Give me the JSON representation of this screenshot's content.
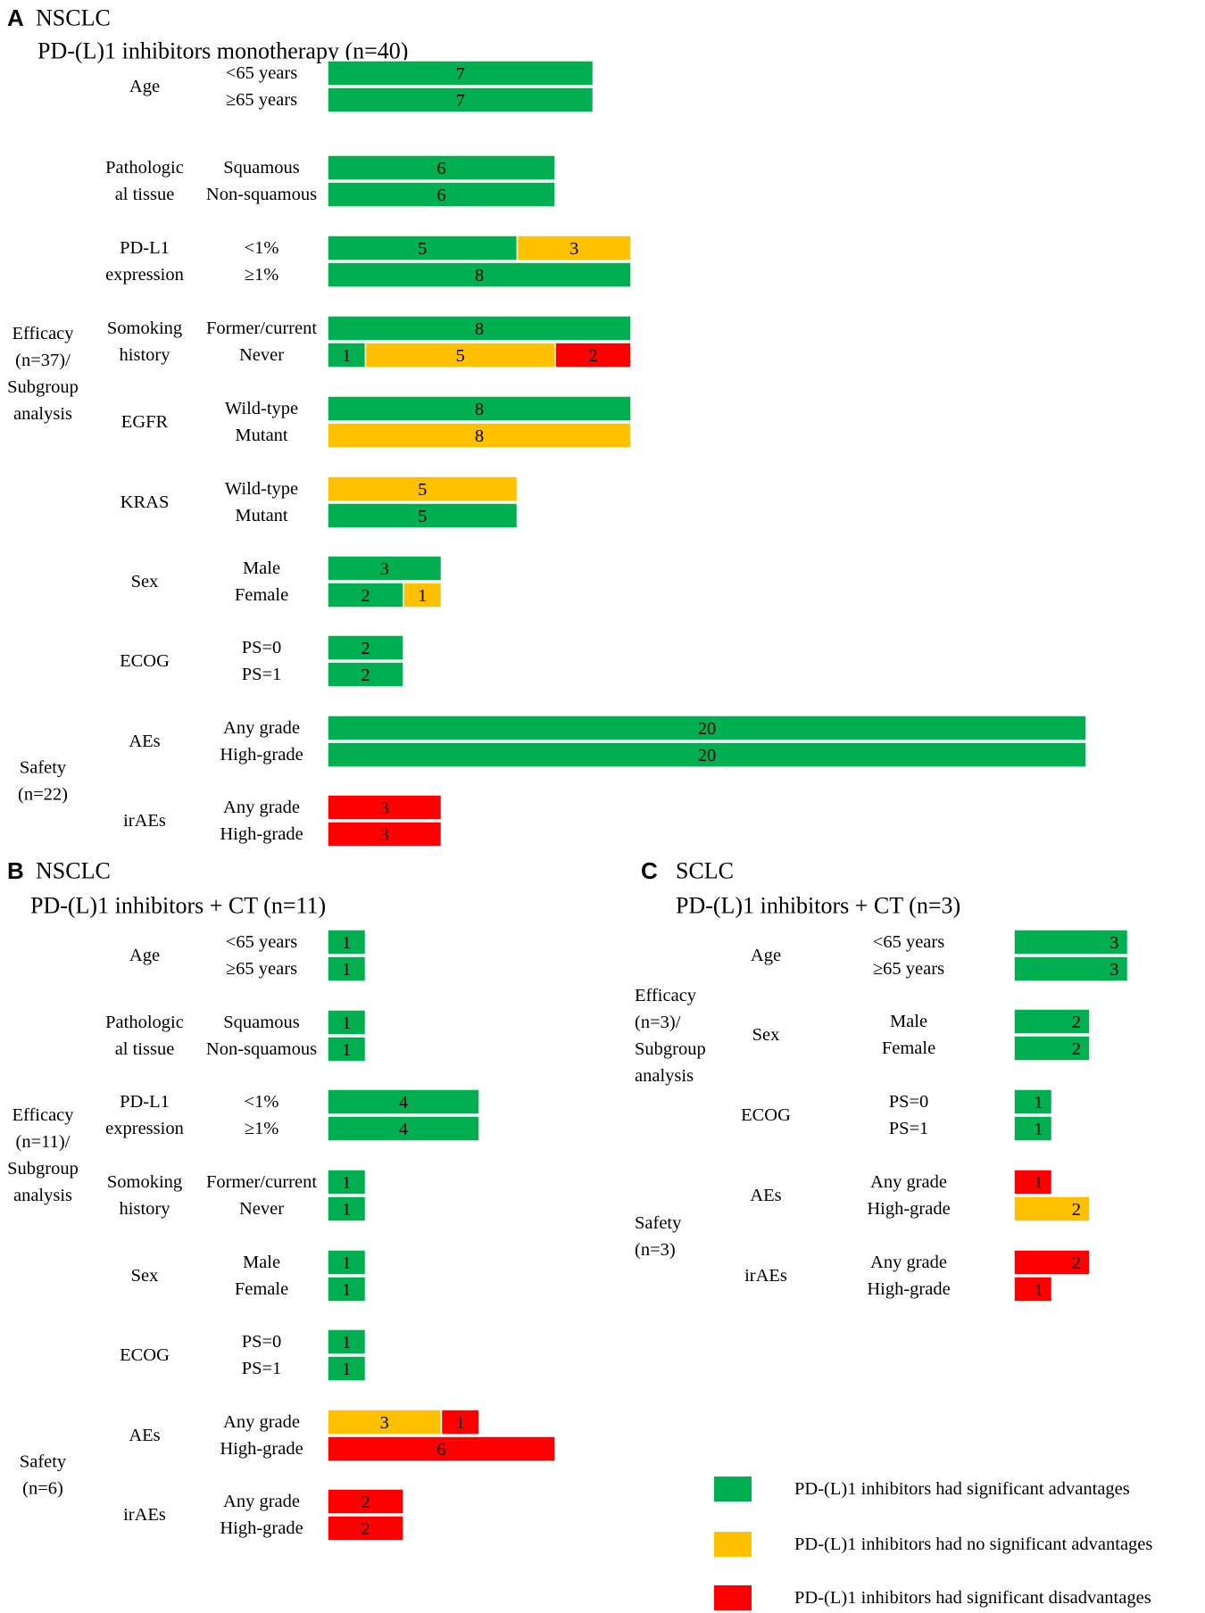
{
  "colors": {
    "sig_adv": "#00b050",
    "no_sig": "#ffc000",
    "sig_disadv": "#ff0000"
  },
  "legend": [
    {
      "key": "sig_adv",
      "label": "PD-(L)1 inhibitors had significant advantages"
    },
    {
      "key": "no_sig",
      "label": "PD-(L)1 inhibitors had no significant advantages"
    },
    {
      "key": "sig_disadv",
      "label": "PD-(L)1 inhibitors had significant disadvantages"
    }
  ],
  "chart_data": [
    {
      "type": "bar",
      "stacked": true,
      "orientation": "horizontal",
      "panel": "A",
      "heading": "NSCLC",
      "title": "PD-(L)1 inhibitors monotherapy  (n=40)",
      "groups": [
        {
          "label": "Efficacy (n=37)/ Subgroup analysis",
          "lines": [
            "Efficacy",
            "(n=37)/",
            "Subgroup",
            "analysis"
          ],
          "items": [
            {
              "category": "Age",
              "lines": [
                "Age"
              ],
              "rows": [
                {
                  "label": "<65 years",
                  "segments": [
                    {
                      "key": "sig_adv",
                      "value": 7
                    }
                  ]
                },
                {
                  "label": "≥65 years",
                  "segments": [
                    {
                      "key": "sig_adv",
                      "value": 7
                    }
                  ]
                }
              ]
            },
            {
              "category": "Pathological tissue",
              "lines": [
                "Pathologic",
                "al tissue"
              ],
              "rows": [
                {
                  "label": "Squamous",
                  "segments": [
                    {
                      "key": "sig_adv",
                      "value": 6
                    }
                  ]
                },
                {
                  "label": "Non-squamous",
                  "segments": [
                    {
                      "key": "sig_adv",
                      "value": 6
                    }
                  ]
                }
              ]
            },
            {
              "category": "PD-L1 expression",
              "lines": [
                "PD-L1",
                "expression"
              ],
              "rows": [
                {
                  "label": "<1%",
                  "segments": [
                    {
                      "key": "sig_adv",
                      "value": 5
                    },
                    {
                      "key": "no_sig",
                      "value": 3
                    }
                  ]
                },
                {
                  "label": "≥1%",
                  "segments": [
                    {
                      "key": "sig_adv",
                      "value": 8
                    }
                  ]
                }
              ]
            },
            {
              "category": "Somoking history",
              "lines": [
                "Somoking",
                "history"
              ],
              "rows": [
                {
                  "label": "Former/current",
                  "segments": [
                    {
                      "key": "sig_adv",
                      "value": 8
                    }
                  ]
                },
                {
                  "label": "Never",
                  "segments": [
                    {
                      "key": "sig_adv",
                      "value": 1
                    },
                    {
                      "key": "no_sig",
                      "value": 5
                    },
                    {
                      "key": "sig_disadv",
                      "value": 2
                    }
                  ]
                }
              ]
            },
            {
              "category": "EGFR",
              "lines": [
                "EGFR"
              ],
              "rows": [
                {
                  "label": "Wild-type",
                  "segments": [
                    {
                      "key": "sig_adv",
                      "value": 8
                    }
                  ]
                },
                {
                  "label": "Mutant",
                  "segments": [
                    {
                      "key": "no_sig",
                      "value": 8
                    }
                  ]
                }
              ]
            },
            {
              "category": "KRAS",
              "lines": [
                "KRAS"
              ],
              "rows": [
                {
                  "label": "Wild-type",
                  "segments": [
                    {
                      "key": "no_sig",
                      "value": 5
                    }
                  ]
                },
                {
                  "label": "Mutant",
                  "segments": [
                    {
                      "key": "sig_adv",
                      "value": 5
                    }
                  ]
                }
              ]
            },
            {
              "category": "Sex",
              "lines": [
                "Sex"
              ],
              "rows": [
                {
                  "label": "Male",
                  "segments": [
                    {
                      "key": "sig_adv",
                      "value": 3
                    }
                  ]
                },
                {
                  "label": "Female",
                  "segments": [
                    {
                      "key": "sig_adv",
                      "value": 2
                    },
                    {
                      "key": "no_sig",
                      "value": 1
                    }
                  ]
                }
              ]
            },
            {
              "category": "ECOG",
              "lines": [
                "ECOG"
              ],
              "rows": [
                {
                  "label": "PS=0",
                  "segments": [
                    {
                      "key": "sig_adv",
                      "value": 2
                    }
                  ]
                },
                {
                  "label": "PS=1",
                  "segments": [
                    {
                      "key": "sig_adv",
                      "value": 2
                    }
                  ]
                }
              ]
            }
          ]
        },
        {
          "label": "Safety (n=22)",
          "lines": [
            "Safety",
            "(n=22)"
          ],
          "items": [
            {
              "category": "AEs",
              "lines": [
                "AEs"
              ],
              "rows": [
                {
                  "label": "Any grade",
                  "segments": [
                    {
                      "key": "sig_adv",
                      "value": 20
                    }
                  ]
                },
                {
                  "label": "High-grade",
                  "segments": [
                    {
                      "key": "sig_adv",
                      "value": 20
                    }
                  ]
                }
              ]
            },
            {
              "category": "irAEs",
              "lines": [
                "irAEs"
              ],
              "rows": [
                {
                  "label": "Any grade",
                  "segments": [
                    {
                      "key": "sig_disadv",
                      "value": 3
                    }
                  ]
                },
                {
                  "label": "High-grade",
                  "segments": [
                    {
                      "key": "sig_disadv",
                      "value": 3
                    }
                  ]
                }
              ]
            }
          ]
        }
      ]
    },
    {
      "type": "bar",
      "stacked": true,
      "orientation": "horizontal",
      "panel": "B",
      "heading": "NSCLC",
      "title": "PD-(L)1 inhibitors + CT  (n=11)",
      "groups": [
        {
          "label": "Efficacy (n=11)/ Subgroup analysis",
          "lines": [
            "Efficacy",
            "(n=11)/",
            "Subgroup",
            "analysis"
          ],
          "items": [
            {
              "category": "Age",
              "lines": [
                "Age"
              ],
              "rows": [
                {
                  "label": "<65 years",
                  "segments": [
                    {
                      "key": "sig_adv",
                      "value": 1
                    }
                  ]
                },
                {
                  "label": "≥65 years",
                  "segments": [
                    {
                      "key": "sig_adv",
                      "value": 1
                    }
                  ]
                }
              ]
            },
            {
              "category": "Pathological tissue",
              "lines": [
                "Pathologic",
                "al tissue"
              ],
              "rows": [
                {
                  "label": "Squamous",
                  "segments": [
                    {
                      "key": "sig_adv",
                      "value": 1
                    }
                  ]
                },
                {
                  "label": "Non-squamous",
                  "segments": [
                    {
                      "key": "sig_adv",
                      "value": 1
                    }
                  ]
                }
              ]
            },
            {
              "category": "PD-L1 expression",
              "lines": [
                "PD-L1",
                "expression"
              ],
              "rows": [
                {
                  "label": "<1%",
                  "segments": [
                    {
                      "key": "sig_adv",
                      "value": 4
                    }
                  ]
                },
                {
                  "label": "≥1%",
                  "segments": [
                    {
                      "key": "sig_adv",
                      "value": 4
                    }
                  ]
                }
              ]
            },
            {
              "category": "Somoking history",
              "lines": [
                "Somoking",
                "history"
              ],
              "rows": [
                {
                  "label": "Former/current",
                  "segments": [
                    {
                      "key": "sig_adv",
                      "value": 1
                    }
                  ]
                },
                {
                  "label": "Never",
                  "segments": [
                    {
                      "key": "sig_adv",
                      "value": 1
                    }
                  ]
                }
              ]
            },
            {
              "category": "Sex",
              "lines": [
                "Sex"
              ],
              "rows": [
                {
                  "label": "Male",
                  "segments": [
                    {
                      "key": "sig_adv",
                      "value": 1
                    }
                  ]
                },
                {
                  "label": "Female",
                  "segments": [
                    {
                      "key": "sig_adv",
                      "value": 1
                    }
                  ]
                }
              ]
            },
            {
              "category": "ECOG",
              "lines": [
                "ECOG"
              ],
              "rows": [
                {
                  "label": "PS=0",
                  "segments": [
                    {
                      "key": "sig_adv",
                      "value": 1
                    }
                  ]
                },
                {
                  "label": "PS=1",
                  "segments": [
                    {
                      "key": "sig_adv",
                      "value": 1
                    }
                  ]
                }
              ]
            }
          ]
        },
        {
          "label": "Safety (n=6)",
          "lines": [
            "Safety",
            "(n=6)"
          ],
          "items": [
            {
              "category": "AEs",
              "lines": [
                "AEs"
              ],
              "rows": [
                {
                  "label": "Any grade",
                  "segments": [
                    {
                      "key": "no_sig",
                      "value": 3
                    },
                    {
                      "key": "sig_disadv",
                      "value": 1
                    }
                  ]
                },
                {
                  "label": "High-grade",
                  "segments": [
                    {
                      "key": "sig_disadv",
                      "value": 6
                    }
                  ]
                }
              ]
            },
            {
              "category": "irAEs",
              "lines": [
                "irAEs"
              ],
              "rows": [
                {
                  "label": "Any grade",
                  "segments": [
                    {
                      "key": "sig_disadv",
                      "value": 2
                    }
                  ]
                },
                {
                  "label": "High-grade",
                  "segments": [
                    {
                      "key": "sig_disadv",
                      "value": 2
                    }
                  ]
                }
              ]
            }
          ]
        }
      ]
    },
    {
      "type": "bar",
      "stacked": true,
      "orientation": "horizontal",
      "panel": "C",
      "heading": "SCLC",
      "title": "PD-(L)1 inhibitors + CT (n=3)",
      "groups": [
        {
          "label": "Efficacy (n=3)/ Subgroup analysis",
          "lines": [
            "Efficacy",
            "(n=3)/",
            "Subgroup",
            "analysis"
          ],
          "items": [
            {
              "category": "Age",
              "lines": [
                "Age"
              ],
              "rows": [
                {
                  "label": "<65 years",
                  "segments": [
                    {
                      "key": "sig_adv",
                      "value": 3
                    }
                  ]
                },
                {
                  "label": "≥65 years",
                  "segments": [
                    {
                      "key": "sig_adv",
                      "value": 3
                    }
                  ]
                }
              ]
            },
            {
              "category": "Sex",
              "lines": [
                "Sex"
              ],
              "rows": [
                {
                  "label": "Male",
                  "segments": [
                    {
                      "key": "sig_adv",
                      "value": 2
                    }
                  ]
                },
                {
                  "label": "Female",
                  "segments": [
                    {
                      "key": "sig_adv",
                      "value": 2
                    }
                  ]
                }
              ]
            },
            {
              "category": "ECOG",
              "lines": [
                "ECOG"
              ],
              "rows": [
                {
                  "label": "PS=0",
                  "segments": [
                    {
                      "key": "sig_adv",
                      "value": 1
                    }
                  ]
                },
                {
                  "label": "PS=1",
                  "segments": [
                    {
                      "key": "sig_adv",
                      "value": 1
                    }
                  ]
                }
              ]
            }
          ]
        },
        {
          "label": "Safety (n=3)",
          "lines": [
            "Safety",
            "(n=3)"
          ],
          "items": [
            {
              "category": "AEs",
              "lines": [
                "AEs"
              ],
              "rows": [
                {
                  "label": "Any grade",
                  "segments": [
                    {
                      "key": "sig_disadv",
                      "value": 1
                    }
                  ]
                },
                {
                  "label": "High-grade",
                  "segments": [
                    {
                      "key": "no_sig",
                      "value": 2
                    }
                  ]
                }
              ]
            },
            {
              "category": "irAEs",
              "lines": [
                "irAEs"
              ],
              "rows": [
                {
                  "label": "Any grade",
                  "segments": [
                    {
                      "key": "sig_disadv",
                      "value": 2
                    }
                  ]
                },
                {
                  "label": "High-grade",
                  "segments": [
                    {
                      "key": "sig_disadv",
                      "value": 1
                    }
                  ]
                }
              ]
            }
          ]
        }
      ]
    }
  ]
}
